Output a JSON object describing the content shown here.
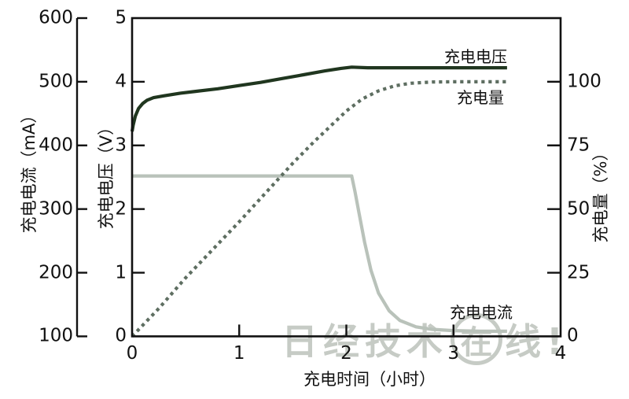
{
  "chart_data": {
    "type": "line",
    "title": "",
    "grid": false,
    "legend_position": "inline-right-of-curves",
    "x_axis": {
      "title": "充电时间（小时）",
      "min": 0,
      "max": 4,
      "tick_values": [
        0,
        1,
        2,
        3,
        4
      ],
      "tick_labels": [
        "0",
        "1",
        "2",
        "3",
        "4"
      ]
    },
    "y_axes": {
      "current": {
        "title": "充电电流（mA）",
        "unit": "mA",
        "min": 100,
        "max": 600,
        "tick_values": [
          600,
          500,
          400,
          300,
          200,
          100
        ],
        "tick_labels": [
          "600",
          "500",
          "400",
          "300",
          "200",
          "100"
        ],
        "side": "outer-left"
      },
      "voltage": {
        "title": "充电电压（V）",
        "unit": "V",
        "min": 0,
        "max": 5,
        "tick_values": [
          5,
          4,
          3,
          2,
          1,
          0
        ],
        "tick_labels": [
          "5",
          "4",
          "3",
          "2",
          "1",
          "0"
        ],
        "side": "left"
      },
      "percent": {
        "title": "充电量（%）",
        "unit": "%",
        "min": 0,
        "max": 125,
        "tick_values": [
          100,
          75,
          50,
          25,
          0
        ],
        "tick_labels": [
          "100",
          "75",
          "50",
          "25",
          "0"
        ],
        "side": "right"
      }
    },
    "series": [
      {
        "id": "current",
        "name": "充电电流",
        "axis": "current",
        "style": "solid",
        "points": [
          [
            0,
            352
          ],
          [
            2.05,
            352
          ],
          [
            2.08,
            328
          ],
          [
            2.12,
            292
          ],
          [
            2.17,
            248
          ],
          [
            2.23,
            204
          ],
          [
            2.3,
            168
          ],
          [
            2.4,
            140
          ],
          [
            2.5,
            125
          ],
          [
            2.65,
            115
          ],
          [
            2.8,
            111
          ],
          [
            3.0,
            109
          ],
          [
            3.25,
            108
          ],
          [
            3.5,
            108
          ]
        ]
      },
      {
        "id": "charge",
        "name": "充电量",
        "axis": "percent",
        "style": "dotted",
        "points": [
          [
            0,
            0
          ],
          [
            0.25,
            11
          ],
          [
            0.5,
            23
          ],
          [
            0.75,
            34
          ],
          [
            1.0,
            45
          ],
          [
            1.25,
            56.5
          ],
          [
            1.5,
            68
          ],
          [
            1.7,
            76.5
          ],
          [
            1.85,
            82.5
          ],
          [
            2.0,
            88.5
          ],
          [
            2.15,
            93.3
          ],
          [
            2.3,
            96.4
          ],
          [
            2.45,
            98.4
          ],
          [
            2.6,
            99.4
          ],
          [
            2.8,
            99.9
          ],
          [
            3.0,
            100
          ],
          [
            3.5,
            100
          ]
        ]
      },
      {
        "id": "voltage",
        "name": "充电电压",
        "axis": "voltage",
        "style": "solid",
        "points": [
          [
            0,
            3.22
          ],
          [
            0.01,
            3.32
          ],
          [
            0.03,
            3.46
          ],
          [
            0.06,
            3.58
          ],
          [
            0.1,
            3.66
          ],
          [
            0.14,
            3.71
          ],
          [
            0.2,
            3.75
          ],
          [
            0.3,
            3.78
          ],
          [
            0.45,
            3.82
          ],
          [
            0.6,
            3.85
          ],
          [
            0.8,
            3.89
          ],
          [
            1.0,
            3.94
          ],
          [
            1.2,
            3.99
          ],
          [
            1.4,
            4.05
          ],
          [
            1.6,
            4.11
          ],
          [
            1.8,
            4.17
          ],
          [
            1.95,
            4.21
          ],
          [
            2.05,
            4.23
          ],
          [
            2.2,
            4.22
          ],
          [
            2.6,
            4.22
          ],
          [
            3.0,
            4.22
          ],
          [
            3.5,
            4.22
          ]
        ]
      }
    ]
  },
  "colors": {
    "axis": "#111111",
    "voltage": "#20361f",
    "charge": "#5e6e61",
    "current": "#b9c2ba",
    "watermark": "#c6cbc5"
  },
  "watermark": {
    "prefix": "日经技术",
    "circled": "在",
    "suffix": "线!"
  }
}
